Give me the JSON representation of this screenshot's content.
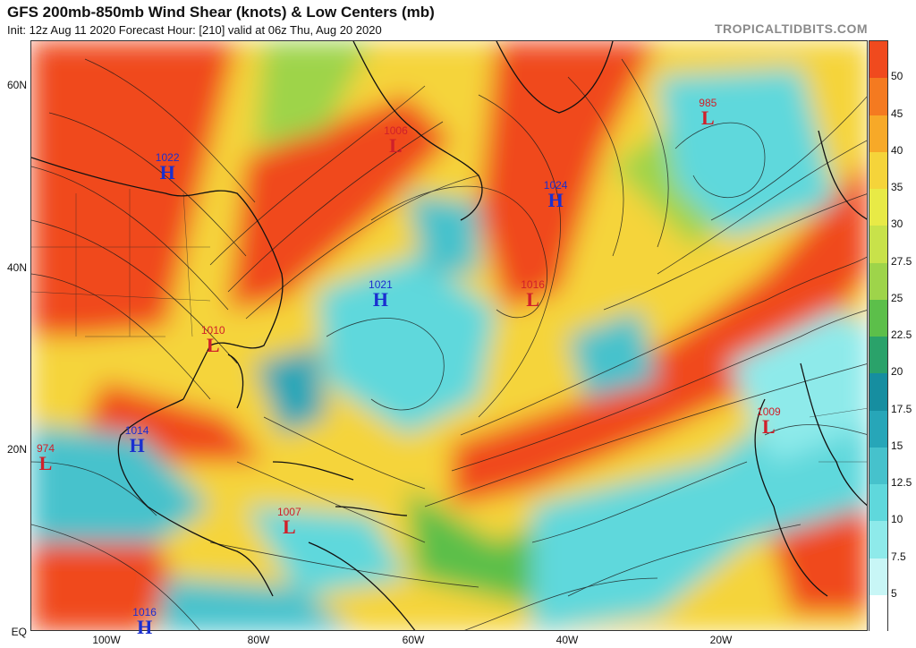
{
  "header": {
    "title": "GFS 200mb-850mb Wind Shear (knots) & Low Centers (mb)",
    "subtitle": "Init: 12z Aug 11 2020   Forecast Hour: [210]   valid at 06z Thu, Aug 20 2020",
    "brand": "TROPICALTIDBITS.COM"
  },
  "axes": {
    "lat_labels": [
      "60N",
      "40N",
      "20N",
      "EQ"
    ],
    "lon_labels": [
      "100W",
      "80W",
      "60W",
      "40W",
      "20W"
    ]
  },
  "colorbar": {
    "labels": [
      "50",
      "45",
      "40",
      "35",
      "30",
      "27.5",
      "25",
      "22.5",
      "20",
      "17.5",
      "15",
      "12.5",
      "10",
      "7.5",
      "5"
    ],
    "colors": [
      "#f04a1e",
      "#f47a20",
      "#f7a928",
      "#f5d43a",
      "#e8ea46",
      "#c8e24a",
      "#9ed44a",
      "#5cbf4a",
      "#2aa26a",
      "#168ea0",
      "#27a6b8",
      "#46c2cc",
      "#5fd8dc",
      "#8eeaea",
      "#c8f6f6",
      "#ffffff"
    ]
  },
  "pressure_centers": [
    {
      "type": "H",
      "value": "1022",
      "lon": -92,
      "lat": 51
    },
    {
      "type": "L",
      "value": "1006",
      "lon": -62,
      "lat": 54
    },
    {
      "type": "H",
      "value": "1024",
      "lon": -41,
      "lat": 48
    },
    {
      "type": "L",
      "value": "985",
      "lon": -21,
      "lat": 57
    },
    {
      "type": "H",
      "value": "1021",
      "lon": -64,
      "lat": 37
    },
    {
      "type": "L",
      "value": "1016",
      "lon": -44,
      "lat": 37
    },
    {
      "type": "L",
      "value": "1010",
      "lon": -86,
      "lat": 32
    },
    {
      "type": "H",
      "value": "1014",
      "lon": -96,
      "lat": 21
    },
    {
      "type": "L",
      "value": "974",
      "lon": -108,
      "lat": 19
    },
    {
      "type": "L",
      "value": "1007",
      "lon": -76,
      "lat": 12
    },
    {
      "type": "L",
      "value": "1009",
      "lon": -13,
      "lat": 23
    },
    {
      "type": "H",
      "value": "1016",
      "lon": -95,
      "lat": 1
    }
  ],
  "map_extent": {
    "lon_min": -110,
    "lon_max": 0,
    "lat_min": 0,
    "lat_max": 65
  }
}
